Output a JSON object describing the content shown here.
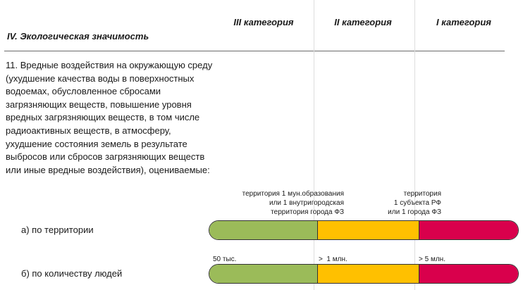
{
  "section_title": "IV. Экологическая значимость",
  "categories": [
    {
      "label": "III категория"
    },
    {
      "label": "II категория"
    },
    {
      "label": "I категория"
    }
  ],
  "criterion_text": "11. Вредные воздействия на окружающую среду (ухудшение качества воды в поверхностных водоемах, обусловленное сбросами загрязняющих веществ, повышение уровня вредных загрязняющих веществ, в том числе радиоактивных веществ, в атмосферу, ухудшение состояния земель в результате выбросов или сбросов загрязняющих веществ или иные вредные воздействия), оцениваемые:",
  "rows": [
    {
      "label": "а) по территории",
      "annotation_ii": "территория 1 мун.образования\nили 1 внутригородская\nтерритория города ФЗ",
      "annotation_i": "территория\n1 субъекта РФ\nили 1 города ФЗ"
    },
    {
      "label": "б) по количеству людей",
      "annotation_iii": "50 тыс.",
      "annotation_ii": ">  1 млн.",
      "annotation_i": "> 5 млн."
    }
  ],
  "colors": {
    "category_iii": "#9bbb59",
    "category_ii": "#ffc000",
    "category_i": "#d9004c"
  }
}
